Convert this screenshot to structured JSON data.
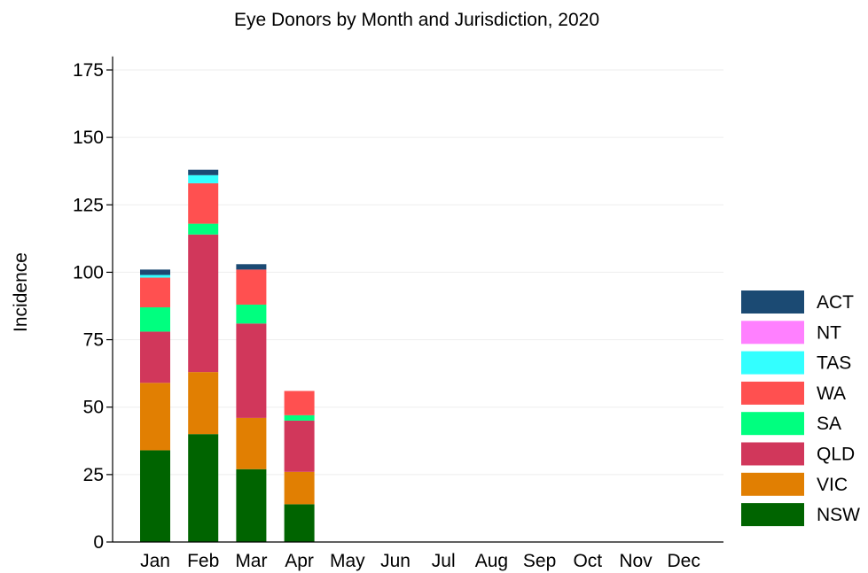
{
  "chart_data": {
    "type": "bar",
    "stacked": true,
    "title": "Eye Donors by Month and Jurisdiction, 2020",
    "ylabel": "Incidence",
    "xlabel": "",
    "categories": [
      "Jan",
      "Feb",
      "Mar",
      "Apr",
      "May",
      "Jun",
      "Jul",
      "Aug",
      "Sep",
      "Oct",
      "Nov",
      "Dec"
    ],
    "ylim": [
      0,
      180
    ],
    "yticks": [
      0,
      25,
      50,
      75,
      100,
      125,
      150,
      175
    ],
    "grid": "horizontal",
    "legend_position": "right",
    "series": [
      {
        "name": "NSW",
        "color": "#006400",
        "values": [
          34,
          40,
          27,
          14,
          0,
          0,
          0,
          0,
          0,
          0,
          0,
          0
        ]
      },
      {
        "name": "VIC",
        "color": "#E17F02",
        "values": [
          25,
          23,
          19,
          12,
          0,
          0,
          0,
          0,
          0,
          0,
          0,
          0
        ]
      },
      {
        "name": "QLD",
        "color": "#D1375B",
        "values": [
          19,
          51,
          35,
          19,
          0,
          0,
          0,
          0,
          0,
          0,
          0,
          0
        ]
      },
      {
        "name": "SA",
        "color": "#00FF7F",
        "values": [
          9,
          4,
          7,
          2,
          0,
          0,
          0,
          0,
          0,
          0,
          0,
          0
        ]
      },
      {
        "name": "WA",
        "color": "#FF5050",
        "values": [
          11,
          15,
          13,
          9,
          0,
          0,
          0,
          0,
          0,
          0,
          0,
          0
        ]
      },
      {
        "name": "TAS",
        "color": "#33FFFF",
        "values": [
          1,
          3,
          0,
          0,
          0,
          0,
          0,
          0,
          0,
          0,
          0,
          0
        ]
      },
      {
        "name": "NT",
        "color": "#FF80FF",
        "values": [
          0,
          0,
          0,
          0,
          0,
          0,
          0,
          0,
          0,
          0,
          0,
          0
        ]
      },
      {
        "name": "ACT",
        "color": "#1B4A73",
        "values": [
          2,
          2,
          2,
          0,
          0,
          0,
          0,
          0,
          0,
          0,
          0,
          0
        ]
      }
    ]
  }
}
